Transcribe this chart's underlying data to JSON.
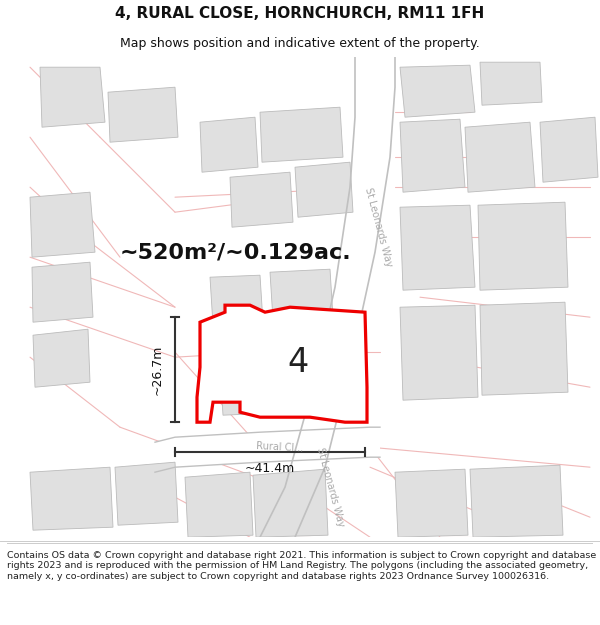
{
  "title": "4, RURAL CLOSE, HORNCHURCH, RM11 1FH",
  "subtitle": "Map shows position and indicative extent of the property.",
  "area_text": "~520m²/~0.129ac.",
  "number_label": "4",
  "dim_width": "~41.4m",
  "dim_height": "~26.7m",
  "road_label_rural": "Rural Cl...",
  "road_label_st": "St Leonards Way",
  "copyright_text": "Contains OS data © Crown copyright and database right 2021. This information is subject to Crown copyright and database rights 2023 and is reproduced with the permission of HM Land Registry. The polygons (including the associated geometry, namely x, y co-ordinates) are subject to Crown copyright and database rights 2023 Ordnance Survey 100026316.",
  "background_color": "#ffffff",
  "map_bg_color": "#ffffff",
  "building_color": "#e0e0e0",
  "building_edge": "#bbbbbb",
  "plot_outline_color": "#ee0000",
  "cadastral_color": "#f0b8b8",
  "road_border_color": "#c0c0c0",
  "dim_line_color": "#333333",
  "road_label_color": "#aaaaaa",
  "title_fontsize": 11,
  "subtitle_fontsize": 9,
  "area_fontsize": 16,
  "number_fontsize": 24,
  "dim_fontsize": 9,
  "copyright_fontsize": 6.8
}
